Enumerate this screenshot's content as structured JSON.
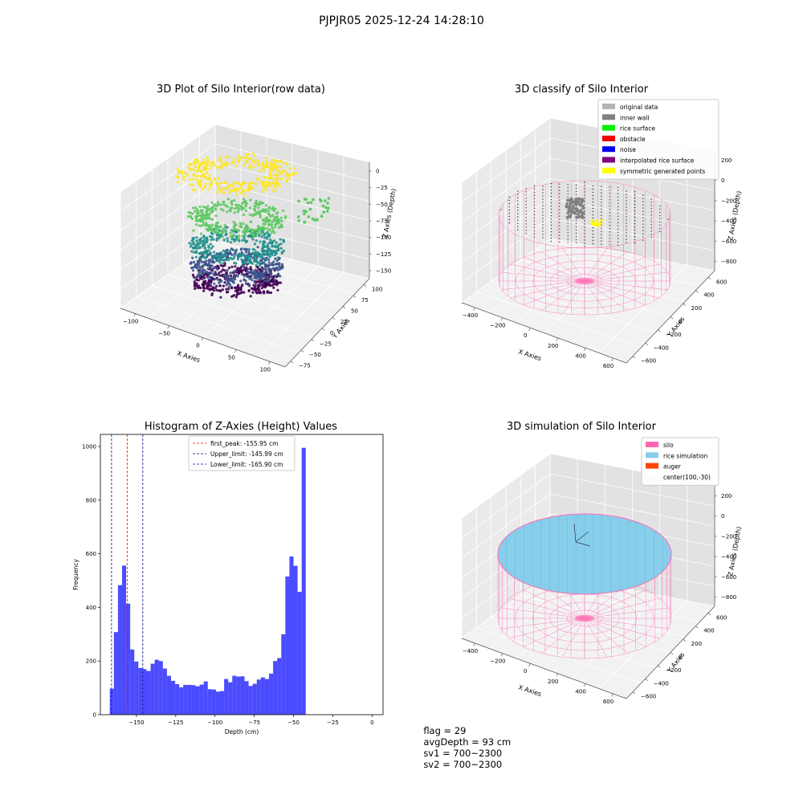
{
  "suptitle": "PJPJR05 2025-12-24 14:28:10",
  "info_line": {
    "flag": "flag = 29",
    "avg_depth": "avgDepth = 93 cm",
    "sv1": "sv1 = 700~2300",
    "sv2": "sv2 = 700~2300"
  },
  "chart_data": [
    {
      "type": "scatter",
      "title": "3D Plot of Silo Interior(row data)",
      "xlabel": "X Axies",
      "ylabel": "Y Axies",
      "zlabel": "Z Axies (Depth)",
      "x_ticks": [
        "−100",
        "−50",
        "0",
        "50",
        "100"
      ],
      "y_ticks": [
        "−75",
        "−50",
        "−25",
        "0",
        "25",
        "50",
        "75",
        "100"
      ],
      "z_ticks": [
        "0",
        "−25",
        "−50",
        "−75",
        "−100",
        "−125",
        "−150"
      ],
      "xlim": [
        -130,
        110
      ],
      "ylim": [
        -85,
        110
      ],
      "zlim": [
        -160,
        10
      ],
      "colormap": [
        "#440154",
        "#3b528b",
        "#21918c",
        "#5ec962",
        "#fde725"
      ],
      "depth_layers": [
        0,
        -40,
        -75,
        -110,
        -145
      ]
    },
    {
      "type": "scatter",
      "title": "3D classify of Silo Interior",
      "zlabel": "Z Axies (Depth)",
      "xlabel": "X Axies",
      "ylabel": "Y Axies",
      "x_ticks": [
        "−400",
        "−200",
        "0",
        "200",
        "400",
        "600"
      ],
      "y_ticks": [
        "−600",
        "−400",
        "−200",
        "0",
        "200",
        "400",
        "600"
      ],
      "z_ticks": [
        "200",
        "0",
        "−200",
        "−400",
        "−600",
        "−800"
      ],
      "legend": [
        {
          "label": "original data",
          "color": "#b3b3b3"
        },
        {
          "label": "inner wall",
          "color": "#808080"
        },
        {
          "label": "rice surface",
          "color": "#00ee00"
        },
        {
          "label": "obstacle",
          "color": "#ee0000"
        },
        {
          "label": "noise",
          "color": "#0000ee"
        },
        {
          "label": "interpolated rice surface",
          "color": "#800080"
        },
        {
          "label": "symmetric generated points",
          "color": "#ffff00"
        }
      ],
      "wire_color": "#ff69b4"
    },
    {
      "type": "bar",
      "title": "Histogram of Z-Axies (Height) Values",
      "xlabel": "Depth (cm)",
      "ylabel": "Frequency",
      "xlim": [
        -173,
        7
      ],
      "ylim": [
        0,
        1045
      ],
      "x_ticks": [
        -150,
        -125,
        -100,
        -75,
        -50,
        -25,
        0
      ],
      "y_ticks": [
        0,
        200,
        400,
        600,
        800,
        1000
      ],
      "bin_start": -167,
      "bin_width": 2.6,
      "values": [
        97,
        308,
        483,
        556,
        414,
        243,
        198,
        174,
        170,
        163,
        190,
        205,
        200,
        172,
        145,
        126,
        114,
        102,
        111,
        111,
        110,
        106,
        112,
        124,
        95,
        94,
        86,
        88,
        133,
        121,
        145,
        142,
        143,
        125,
        107,
        115,
        131,
        139,
        133,
        153,
        200,
        211,
        300,
        515,
        590,
        555,
        458,
        995
      ],
      "bar_color": "#0000ff",
      "lines": [
        {
          "label": "first_peak: -155.95 cm",
          "x": -155.95,
          "color": "#ff0000"
        },
        {
          "label": "Upper_limit: -145.99 cm",
          "x": -145.99,
          "color": "#00008b"
        },
        {
          "label": "Lower_limit: -165.90 cm",
          "x": -165.9,
          "color": "#0000cd"
        }
      ]
    },
    {
      "type": "scatter",
      "title": "3D simulation of Silo Interior",
      "xlabel": "X Axies",
      "ylabel": "Y Axies",
      "zlabel": "Z Axies (Depth)",
      "x_ticks": [
        "−400",
        "−200",
        "0",
        "200",
        "400",
        "600"
      ],
      "y_ticks": [
        "−600",
        "−400",
        "−200",
        "0",
        "200",
        "400",
        "600"
      ],
      "z_ticks": [
        "200",
        "0",
        "−200",
        "−400",
        "−600",
        "−800"
      ],
      "legend": [
        {
          "label": "silo",
          "color": "#ff69b4"
        },
        {
          "label": "rice simulation",
          "color": "#87ceeb"
        },
        {
          "label": "auger",
          "color": "#ff4500"
        },
        {
          "label": "center(100,-30)",
          "color": ""
        }
      ],
      "surface_color": "#87ceeb",
      "wire_color": "#ff69b4"
    }
  ]
}
